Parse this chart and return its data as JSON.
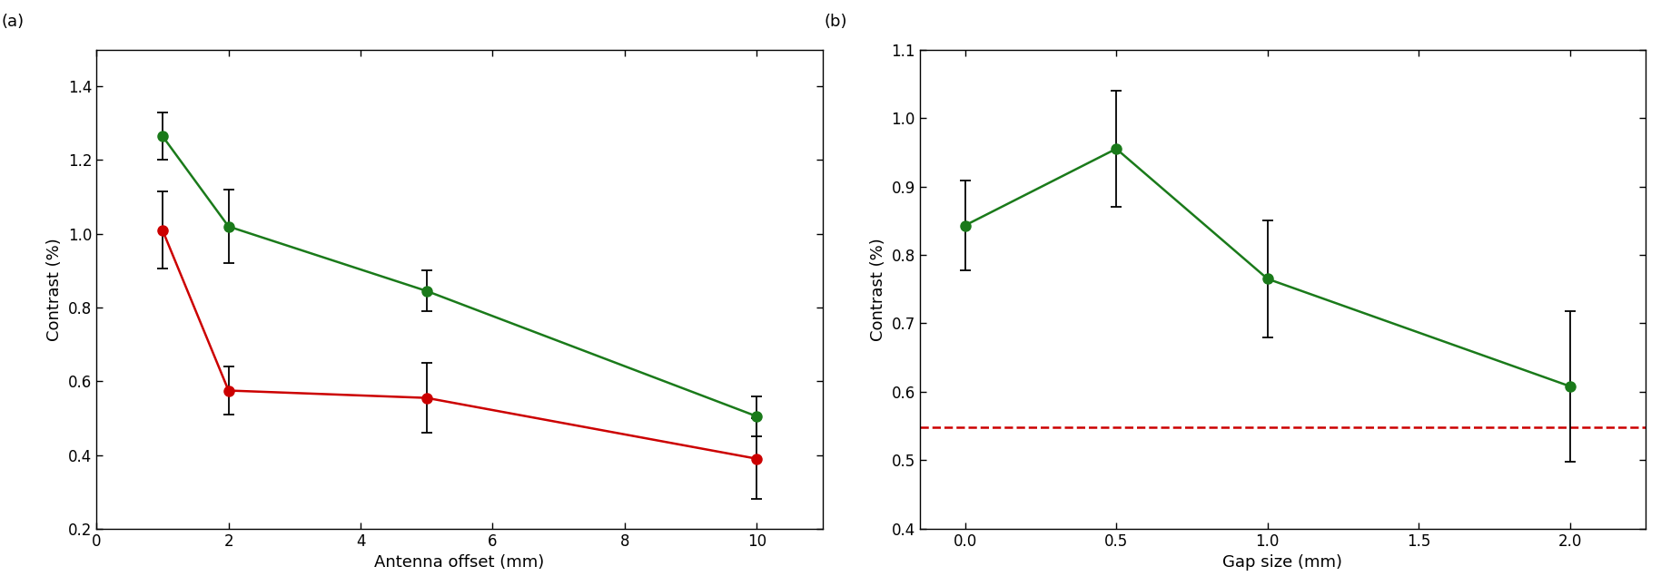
{
  "left": {
    "green_x": [
      1,
      2,
      5,
      10
    ],
    "green_y": [
      1.265,
      1.02,
      0.845,
      0.505
    ],
    "green_yerr": [
      0.065,
      0.1,
      0.055,
      0.055
    ],
    "red_x": [
      1,
      2,
      5,
      10
    ],
    "red_y": [
      1.01,
      0.575,
      0.555,
      0.39
    ],
    "red_yerr": [
      0.105,
      0.065,
      0.095,
      0.11
    ],
    "xlabel": "Antenna offset (mm)",
    "ylabel": "Contrast (%)",
    "ylim": [
      0.2,
      1.5
    ],
    "xlim": [
      0,
      11
    ],
    "xticks": [
      0,
      2,
      4,
      6,
      8,
      10
    ],
    "yticks": [
      0.2,
      0.4,
      0.6,
      0.8,
      1.0,
      1.2,
      1.4
    ],
    "panel_label": "(a)"
  },
  "right": {
    "green_x": [
      0.0,
      0.5,
      1.0,
      2.0
    ],
    "green_y": [
      0.843,
      0.955,
      0.765,
      0.608
    ],
    "green_yerr": [
      0.065,
      0.085,
      0.085,
      0.11
    ],
    "red_hline": 0.548,
    "xlabel": "Gap size (mm)",
    "ylabel": "Contrast (%)",
    "ylim": [
      0.4,
      1.1
    ],
    "xlim": [
      -0.15,
      2.25
    ],
    "xticks": [
      0.0,
      0.5,
      1.0,
      1.5,
      2.0
    ],
    "yticks": [
      0.4,
      0.5,
      0.6,
      0.7,
      0.8,
      0.9,
      1.0,
      1.1
    ],
    "panel_label": "(b)"
  },
  "green_color": "#1a7a1a",
  "red_color": "#cc0000",
  "marker_size": 8,
  "line_width": 1.8,
  "cap_size": 4,
  "ecolor": "black",
  "elinewidth": 1.3,
  "tick_labelsize": 12,
  "axis_labelsize": 13,
  "panel_labelsize": 13
}
